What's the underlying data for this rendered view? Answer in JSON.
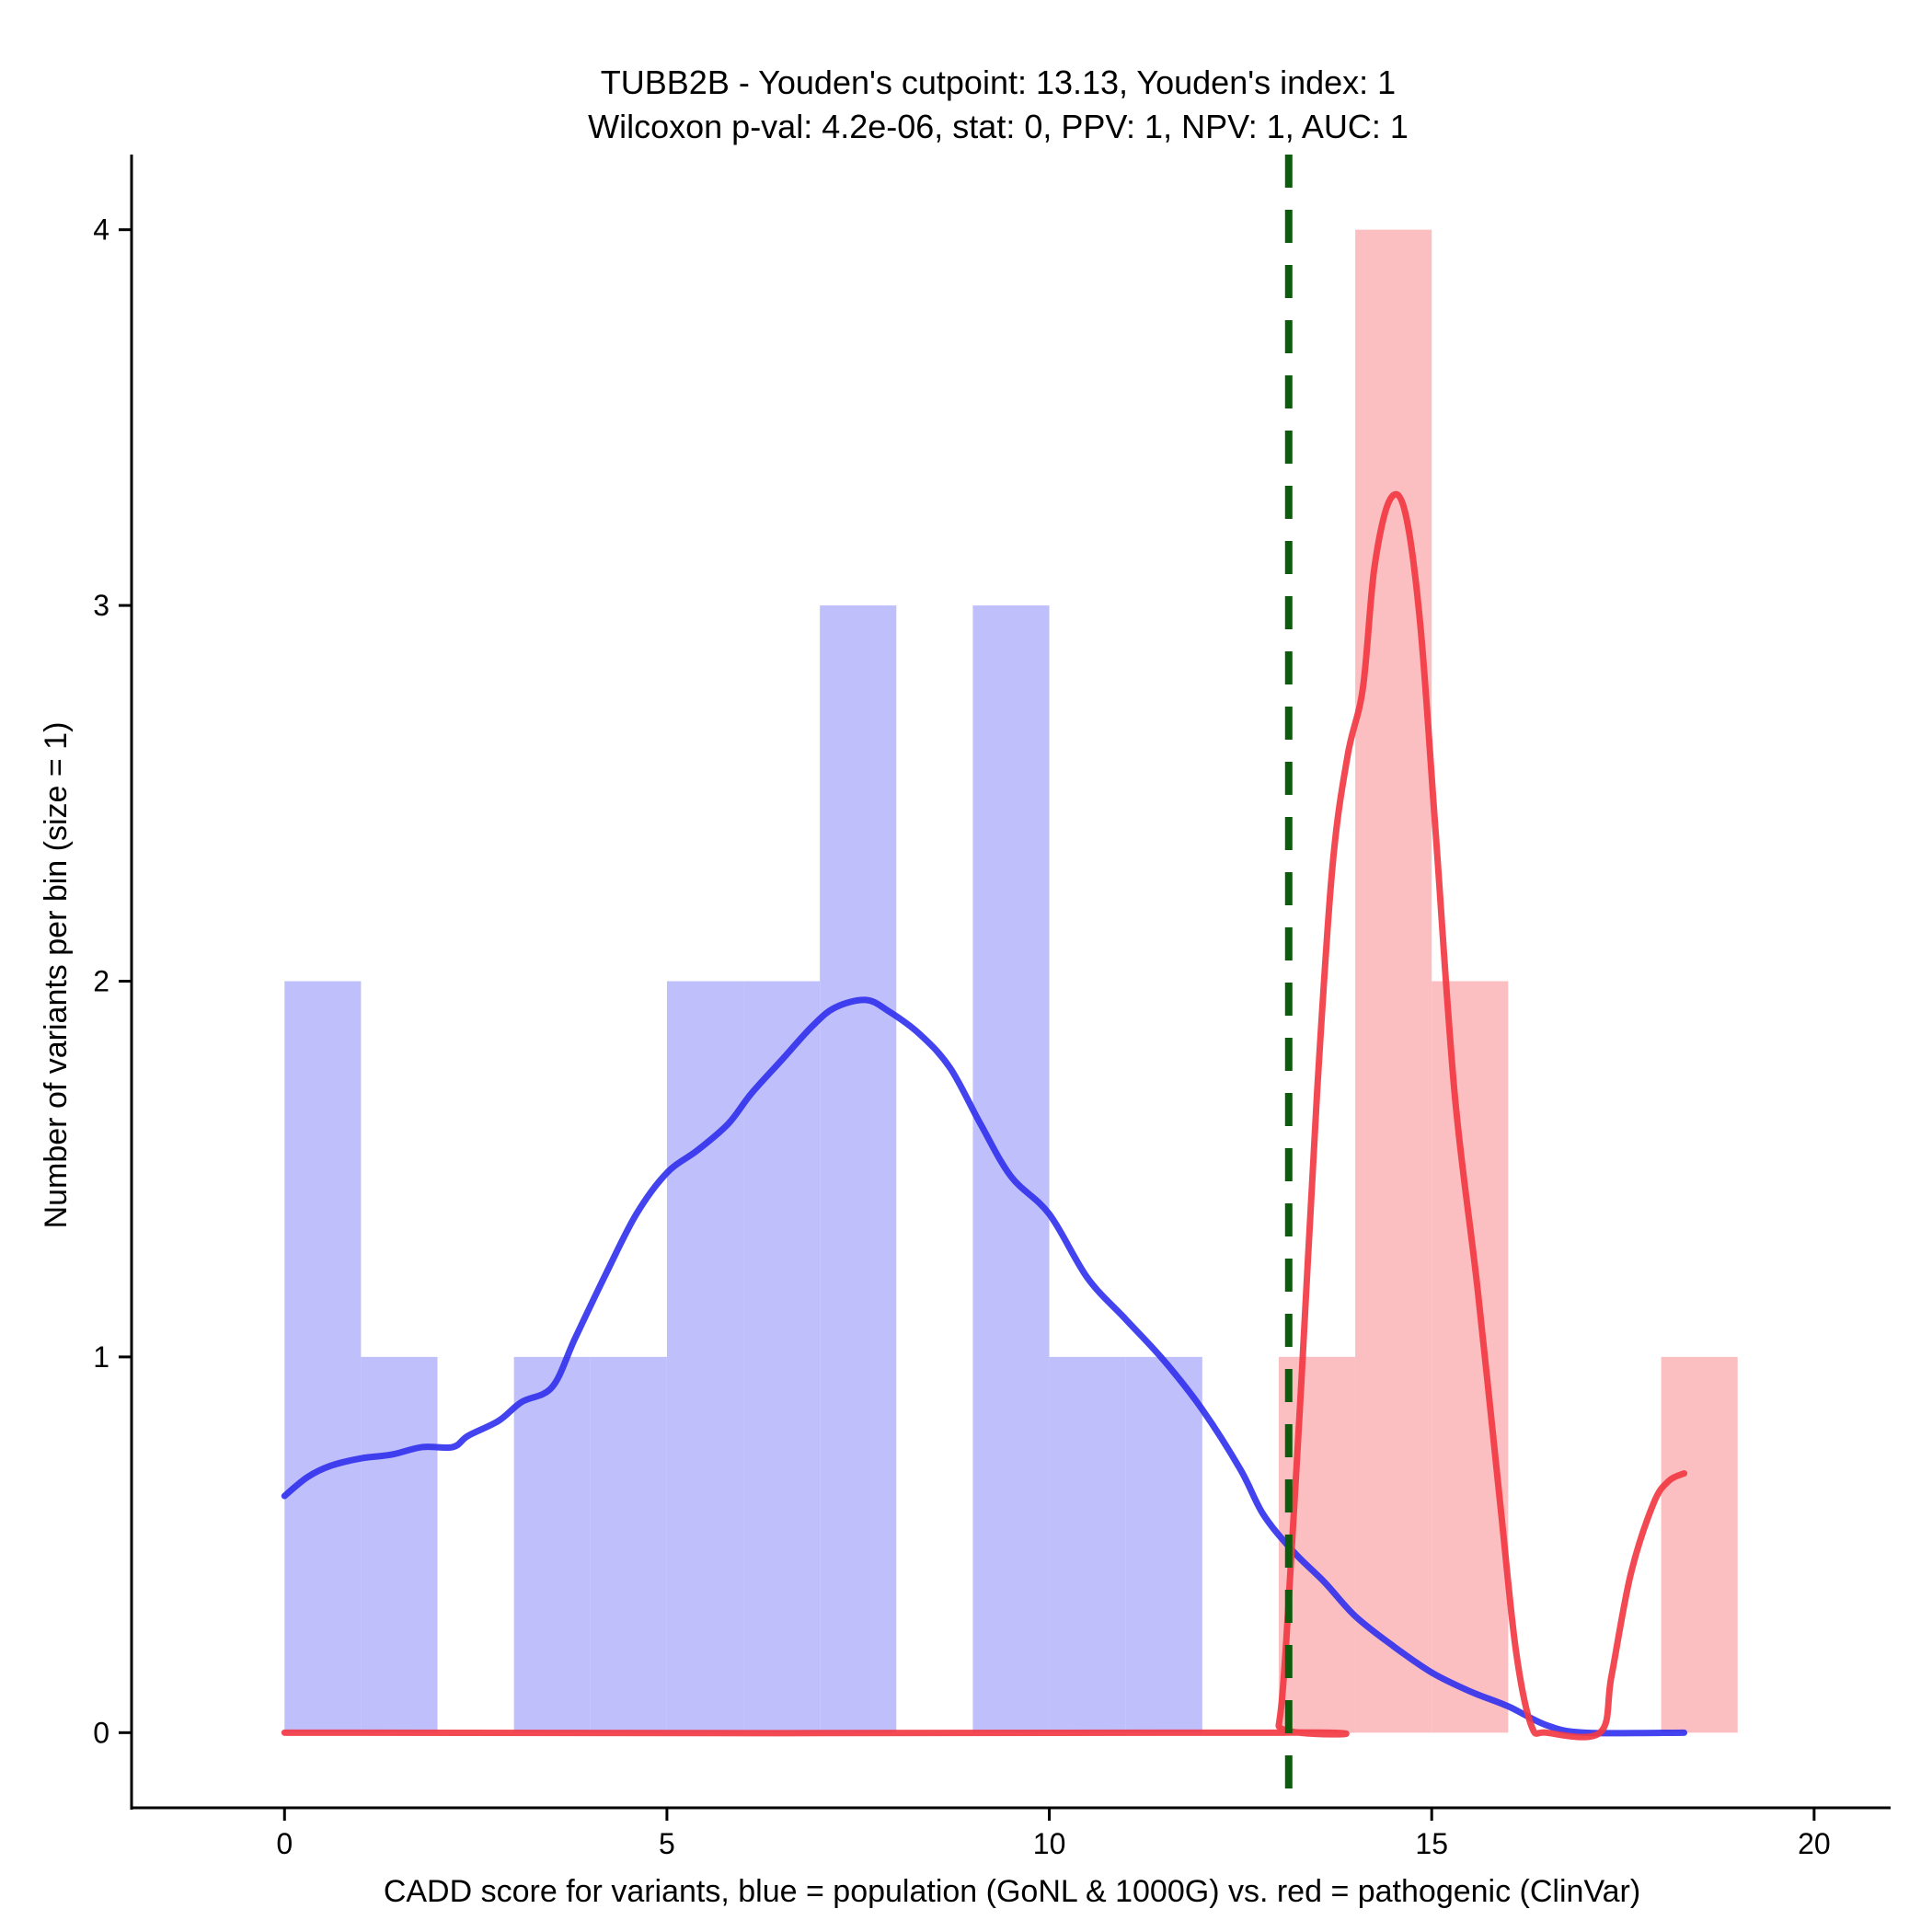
{
  "chart_data": {
    "type": "bar",
    "title_line1": "TUBB2B - Youden's cutpoint: 13.13, Youden's index: 1",
    "title_line2": "Wilcoxon p-val: 4.2e-06, stat: 0, PPV: 1, NPV: 1, AUC: 1",
    "xlabel": "CADD score for variants, blue = population (GoNL & 1000G) vs. red = pathogenic (ClinVar)",
    "ylabel": "Number of variants per bin (size = 1)",
    "xlim": [
      -2,
      21
    ],
    "ylim": [
      -0.2,
      4.2
    ],
    "xticks": [
      0,
      5,
      10,
      15,
      20
    ],
    "xtick_labels": [
      "0",
      "5",
      "10",
      "15",
      "20"
    ],
    "yticks": [
      0,
      1,
      2,
      3,
      4
    ],
    "ytick_labels": [
      "0",
      "1",
      "2",
      "3",
      "4"
    ],
    "bin_size": 1,
    "cutpoint": 13.13,
    "colors": {
      "population_bar": "#bfbffc",
      "pathogenic_bar": "#fcbfc1",
      "population_line": "#3333ee",
      "pathogenic_line": "#f23a44",
      "cutpoint_line": "#0d5c0d"
    },
    "series": [
      {
        "name": "population (GoNL & 1000G)",
        "bins": [
          [
            0,
            2
          ],
          [
            1,
            1
          ],
          [
            3,
            1
          ],
          [
            4,
            1
          ],
          [
            5,
            2
          ],
          [
            6,
            2
          ],
          [
            7,
            3
          ],
          [
            9,
            3
          ],
          [
            10,
            1
          ],
          [
            11,
            1
          ],
          [
            13,
            1
          ]
        ],
        "density": [
          [
            0,
            0.63
          ],
          [
            0.3,
            0.68
          ],
          [
            0.6,
            0.71
          ],
          [
            1.0,
            0.73
          ],
          [
            1.4,
            0.74
          ],
          [
            1.8,
            0.76
          ],
          [
            2.2,
            0.76
          ],
          [
            2.4,
            0.79
          ],
          [
            2.8,
            0.83
          ],
          [
            3.1,
            0.88
          ],
          [
            3.5,
            0.92
          ],
          [
            3.8,
            1.05
          ],
          [
            4.2,
            1.22
          ],
          [
            4.6,
            1.38
          ],
          [
            5.0,
            1.49
          ],
          [
            5.4,
            1.55
          ],
          [
            5.8,
            1.62
          ],
          [
            6.1,
            1.7
          ],
          [
            6.5,
            1.79
          ],
          [
            6.9,
            1.88
          ],
          [
            7.2,
            1.93
          ],
          [
            7.6,
            1.95
          ],
          [
            7.9,
            1.92
          ],
          [
            8.3,
            1.86
          ],
          [
            8.7,
            1.77
          ],
          [
            9.1,
            1.62
          ],
          [
            9.5,
            1.48
          ],
          [
            10.0,
            1.38
          ],
          [
            10.5,
            1.21
          ],
          [
            11.0,
            1.1
          ],
          [
            11.5,
            0.99
          ],
          [
            12.0,
            0.86
          ],
          [
            12.5,
            0.7
          ],
          [
            12.8,
            0.58
          ],
          [
            13.2,
            0.48
          ],
          [
            13.6,
            0.4
          ],
          [
            14.0,
            0.31
          ],
          [
            14.5,
            0.23
          ],
          [
            15.0,
            0.16
          ],
          [
            15.5,
            0.11
          ],
          [
            16.0,
            0.07
          ],
          [
            16.5,
            0.02
          ],
          [
            17.0,
            0.0
          ],
          [
            18.3,
            0.0
          ]
        ]
      },
      {
        "name": "pathogenic (ClinVar)",
        "bins": [
          [
            13,
            1
          ],
          [
            14,
            4
          ],
          [
            15,
            2
          ],
          [
            18,
            1
          ]
        ],
        "density": [
          [
            0,
            0.0
          ],
          [
            12.9,
            0.0
          ],
          [
            13.0,
            0.02
          ],
          [
            13.1,
            0.25
          ],
          [
            13.3,
            0.95
          ],
          [
            13.5,
            1.7
          ],
          [
            13.7,
            2.3
          ],
          [
            13.9,
            2.6
          ],
          [
            14.1,
            2.78
          ],
          [
            14.25,
            3.1
          ],
          [
            14.45,
            3.28
          ],
          [
            14.65,
            3.25
          ],
          [
            14.85,
            2.95
          ],
          [
            15.05,
            2.4
          ],
          [
            15.3,
            1.7
          ],
          [
            15.6,
            1.18
          ],
          [
            15.9,
            0.6
          ],
          [
            16.1,
            0.22
          ],
          [
            16.3,
            0.02
          ],
          [
            16.5,
            0.0
          ],
          [
            17.2,
            0.0
          ],
          [
            17.35,
            0.15
          ],
          [
            17.6,
            0.42
          ],
          [
            17.9,
            0.61
          ],
          [
            18.1,
            0.67
          ],
          [
            18.3,
            0.69
          ]
        ]
      }
    ]
  }
}
